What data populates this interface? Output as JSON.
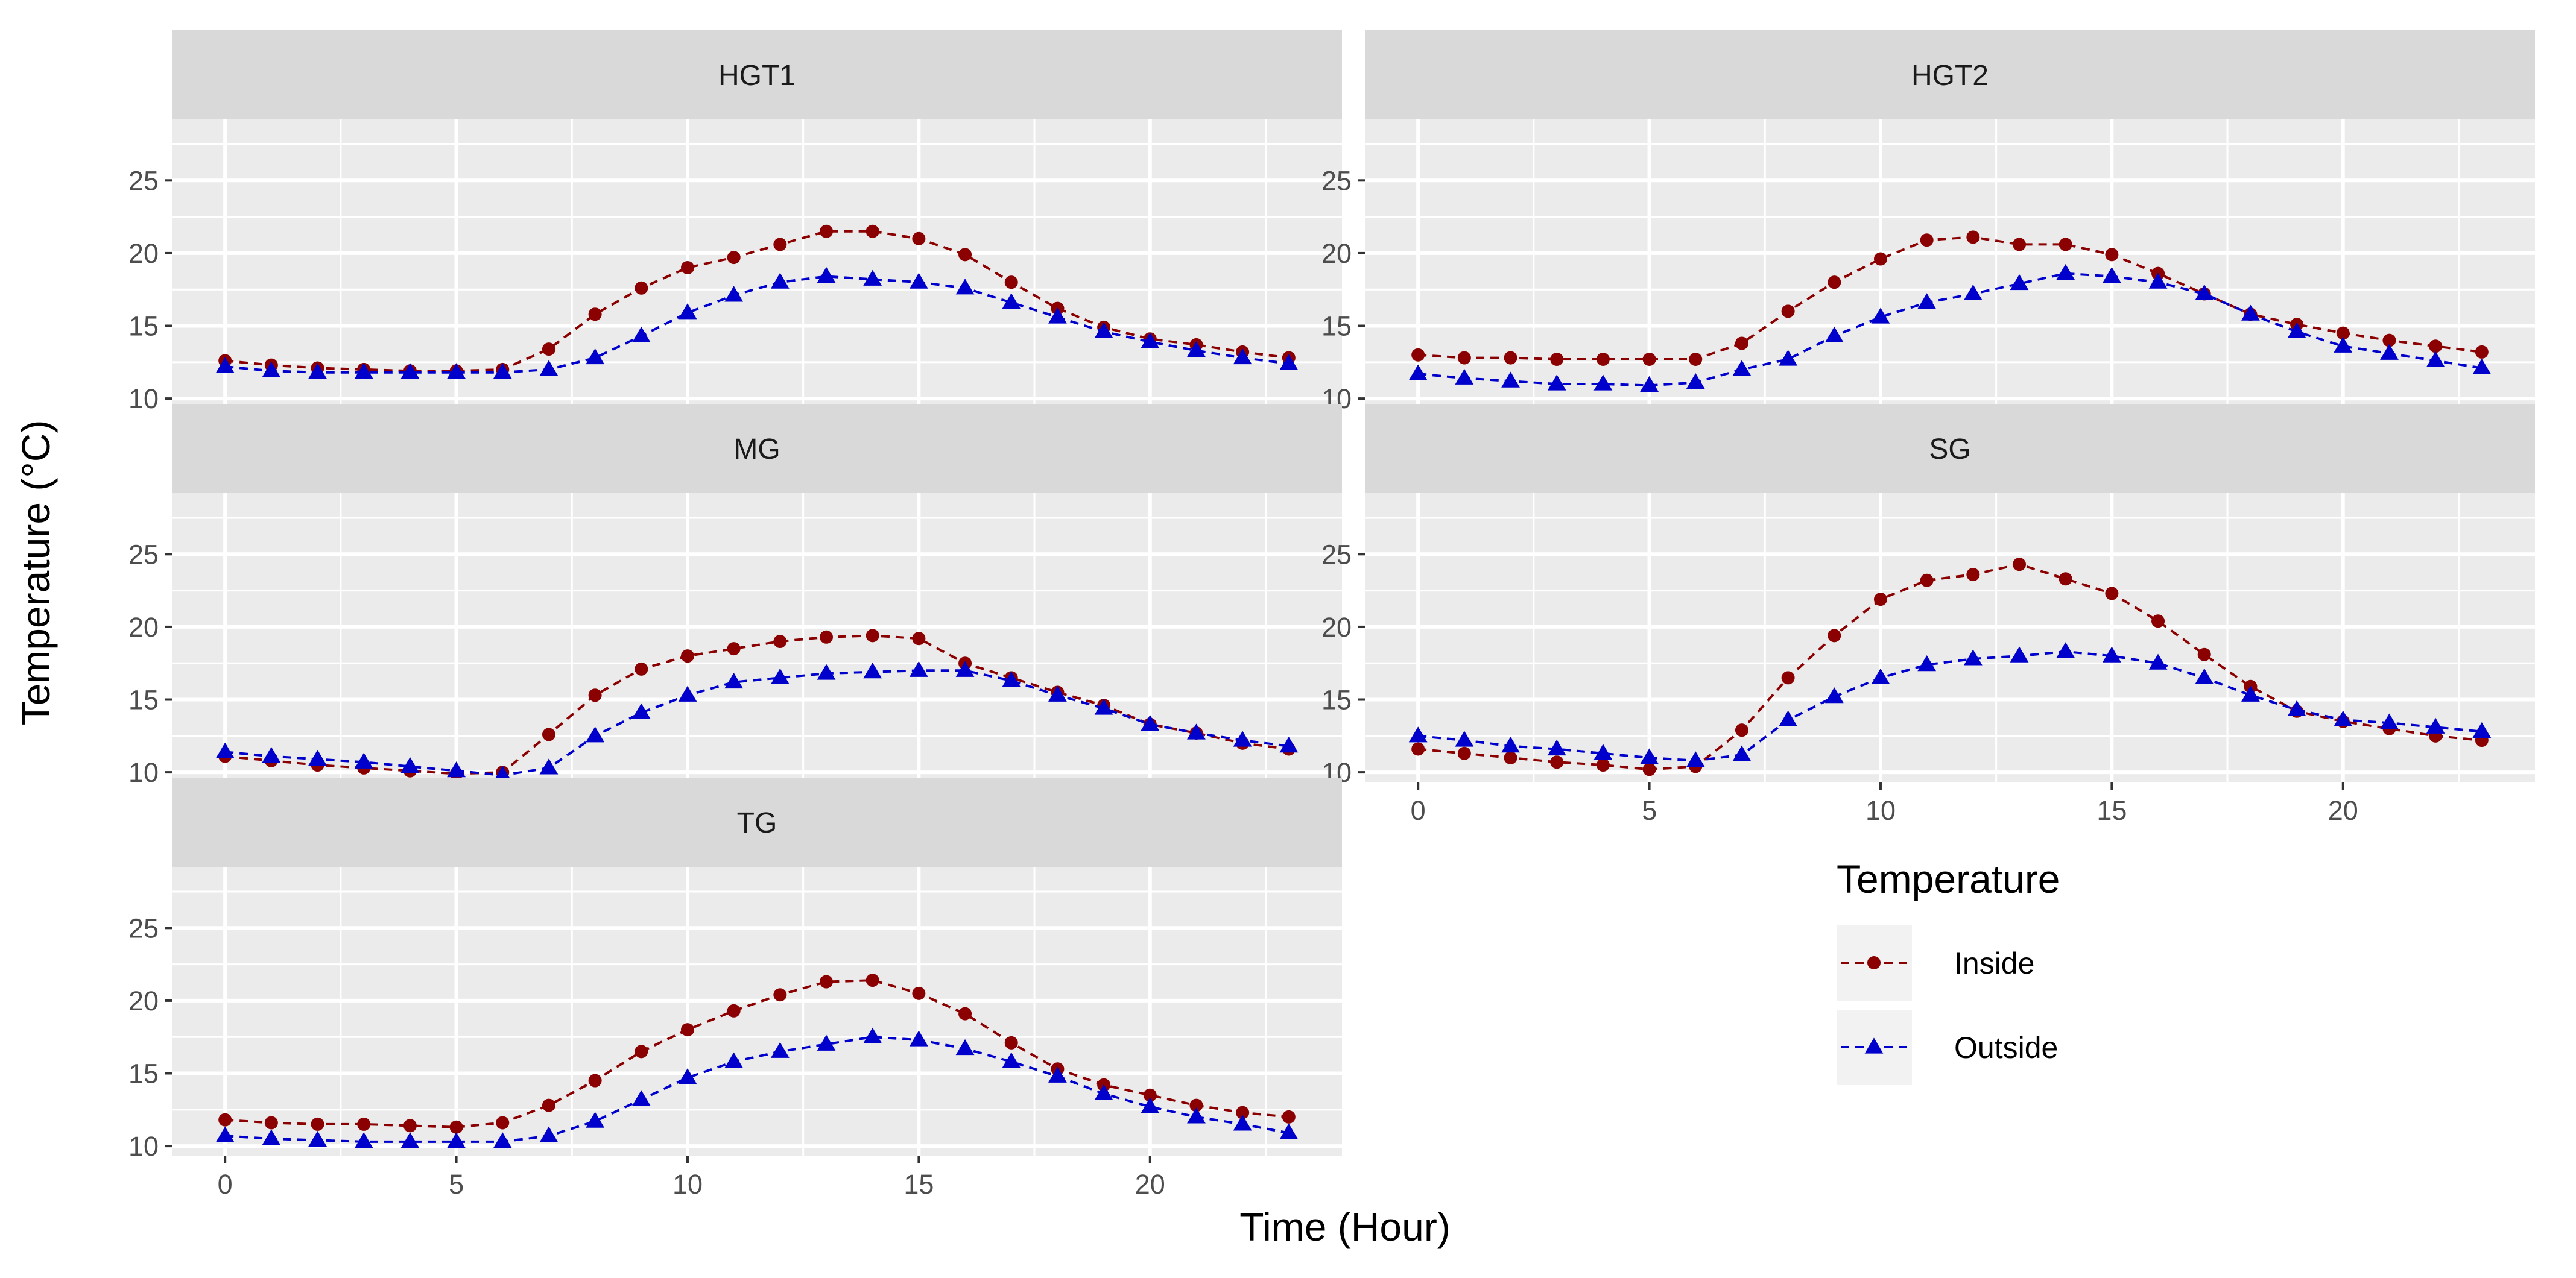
{
  "chart_data": {
    "type": "line",
    "facets": [
      "HGT1",
      "HGT2",
      "MG",
      "SG",
      "TG"
    ],
    "xlabel": "Time (Hour)",
    "ylabel": "Temperature (°C)",
    "x_ticks": [
      "0",
      "5",
      "10",
      "15",
      "20"
    ],
    "y_ticks": [
      "10",
      "15",
      "20",
      "25"
    ],
    "xlim": [
      -1.15,
      24.15
    ],
    "ylim": [
      9.3,
      29.2
    ],
    "grid": true,
    "legend": {
      "title": "Temperature",
      "position": "right",
      "entries": [
        "Inside",
        "Outside"
      ]
    },
    "colors": {
      "Inside": "#8b0000",
      "Outside": "#0000cd"
    },
    "hours": [
      0,
      1,
      2,
      3,
      4,
      5,
      6,
      7,
      8,
      9,
      10,
      11,
      12,
      13,
      14,
      15,
      16,
      17,
      18,
      19,
      20,
      21,
      22,
      23
    ],
    "panels": [
      {
        "name": "HGT1",
        "series": [
          {
            "name": "Inside",
            "values": [
              12.6,
              12.3,
              12.1,
              12.0,
              11.9,
              11.9,
              12.0,
              13.4,
              15.8,
              17.6,
              19.0,
              19.7,
              20.6,
              21.5,
              21.5,
              21.0,
              19.9,
              18.0,
              16.2,
              14.9,
              14.1,
              13.7,
              13.2,
              12.8
            ]
          },
          {
            "name": "Outside",
            "values": [
              12.2,
              11.9,
              11.8,
              11.8,
              11.8,
              11.8,
              11.8,
              12.0,
              12.8,
              14.3,
              15.9,
              17.1,
              18.0,
              18.4,
              18.2,
              18.0,
              17.6,
              16.6,
              15.6,
              14.6,
              13.9,
              13.3,
              12.8,
              12.4
            ]
          }
        ]
      },
      {
        "name": "HGT2",
        "series": [
          {
            "name": "Inside",
            "values": [
              13.0,
              12.8,
              12.8,
              12.7,
              12.7,
              12.7,
              12.7,
              13.8,
              16.0,
              18.0,
              19.6,
              20.9,
              21.1,
              20.6,
              20.6,
              19.9,
              18.6,
              17.2,
              15.8,
              15.1,
              14.5,
              14.0,
              13.6,
              13.2
            ]
          },
          {
            "name": "Outside",
            "values": [
              11.7,
              11.4,
              11.2,
              11.0,
              11.0,
              10.9,
              11.1,
              12.0,
              12.7,
              14.3,
              15.6,
              16.6,
              17.2,
              17.9,
              18.6,
              18.4,
              18.0,
              17.2,
              15.8,
              14.6,
              13.6,
              13.1,
              12.6,
              12.1
            ]
          }
        ]
      },
      {
        "name": "MG",
        "series": [
          {
            "name": "Inside",
            "values": [
              11.1,
              10.8,
              10.5,
              10.3,
              10.1,
              9.9,
              10.0,
              12.6,
              15.3,
              17.1,
              18.0,
              18.5,
              19.0,
              19.3,
              19.4,
              19.2,
              17.5,
              16.5,
              15.5,
              14.6,
              13.3,
              12.7,
              12.0,
              11.6
            ]
          },
          {
            "name": "Outside",
            "values": [
              11.4,
              11.1,
              10.9,
              10.7,
              10.4,
              10.1,
              9.8,
              10.3,
              12.5,
              14.1,
              15.3,
              16.2,
              16.5,
              16.8,
              16.9,
              17.0,
              17.0,
              16.3,
              15.3,
              14.4,
              13.3,
              12.7,
              12.2,
              11.8
            ]
          }
        ]
      },
      {
        "name": "SG",
        "series": [
          {
            "name": "Inside",
            "values": [
              11.6,
              11.3,
              11.0,
              10.7,
              10.5,
              10.2,
              10.4,
              12.9,
              16.5,
              19.4,
              21.9,
              23.2,
              23.6,
              24.3,
              23.3,
              22.3,
              20.4,
              18.1,
              15.9,
              14.2,
              13.5,
              13.0,
              12.5,
              12.2
            ]
          },
          {
            "name": "Outside",
            "values": [
              12.5,
              12.2,
              11.8,
              11.6,
              11.3,
              11.0,
              10.8,
              11.2,
              13.6,
              15.2,
              16.5,
              17.4,
              17.8,
              18.0,
              18.3,
              18.0,
              17.5,
              16.5,
              15.3,
              14.3,
              13.6,
              13.4,
              13.1,
              12.8
            ]
          }
        ]
      },
      {
        "name": "TG",
        "series": [
          {
            "name": "Inside",
            "values": [
              11.8,
              11.6,
              11.5,
              11.5,
              11.4,
              11.3,
              11.6,
              12.8,
              14.5,
              16.5,
              18.0,
              19.3,
              20.4,
              21.3,
              21.4,
              20.5,
              19.1,
              17.1,
              15.3,
              14.2,
              13.5,
              12.8,
              12.3,
              12.0
            ]
          },
          {
            "name": "Outside",
            "values": [
              10.7,
              10.5,
              10.4,
              10.3,
              10.3,
              10.3,
              10.3,
              10.7,
              11.7,
              13.2,
              14.7,
              15.8,
              16.5,
              17.0,
              17.5,
              17.3,
              16.7,
              15.8,
              14.8,
              13.6,
              12.7,
              12.0,
              11.5,
              10.9
            ]
          }
        ]
      }
    ]
  }
}
